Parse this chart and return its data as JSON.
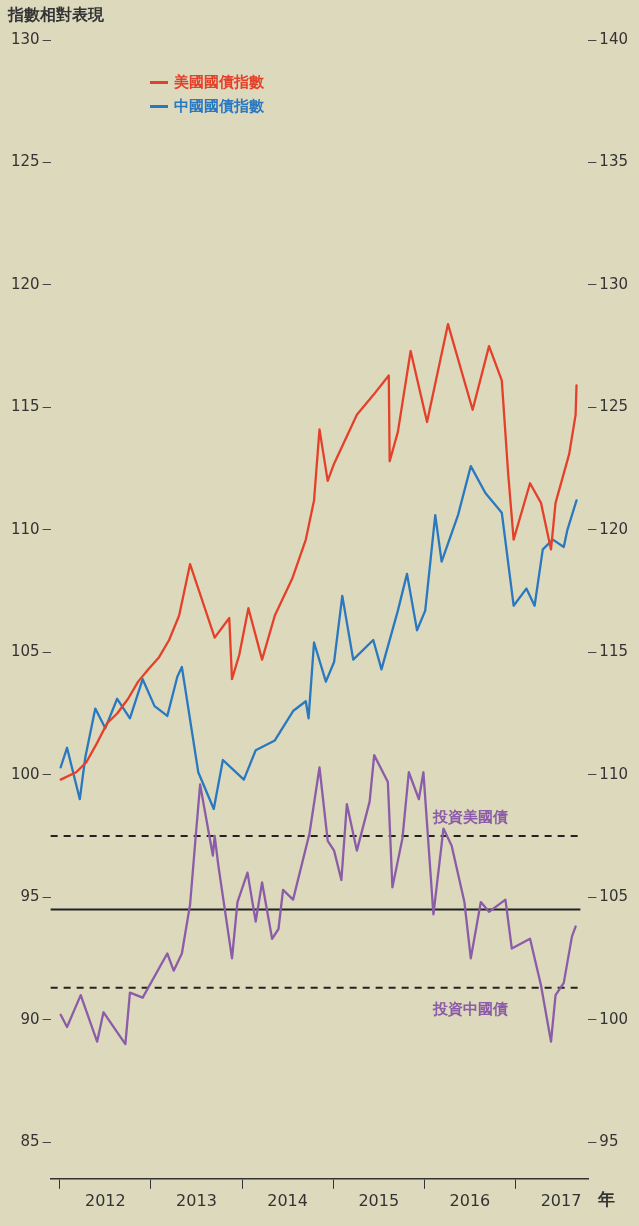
{
  "chart_data": {
    "type": "line",
    "ylabel": "指數相對表現",
    "xlabel": "年",
    "xlim": [
      2011.9,
      2017.8
    ],
    "xticks": [
      {
        "value": 2012,
        "label": null
      },
      {
        "value": 2012.5,
        "label": "2012"
      },
      {
        "value": 2013,
        "label": null
      },
      {
        "value": 2013.5,
        "label": "2013"
      },
      {
        "value": 2014,
        "label": null
      },
      {
        "value": 2014.5,
        "label": "2014"
      },
      {
        "value": 2015,
        "label": null
      },
      {
        "value": 2015.5,
        "label": "2015"
      },
      {
        "value": 2016,
        "label": null
      },
      {
        "value": 2016.5,
        "label": "2016"
      },
      {
        "value": 2017,
        "label": null
      },
      {
        "value": 2017.5,
        "label": "2017"
      }
    ],
    "ylim": [
      83.5,
      130
    ],
    "yticks": [
      85,
      90,
      95,
      100,
      105,
      110,
      115,
      120,
      125,
      130
    ],
    "y2lim": [
      93.5,
      140
    ],
    "y2ticks": [
      95,
      100,
      105,
      110,
      115,
      120,
      125,
      130,
      135,
      140
    ],
    "grid": false,
    "legend": "top left",
    "marker": "none",
    "line_style": "solid",
    "series": [
      {
        "name": "美國國債指數",
        "color": "#e5402a",
        "x": [
          2012.01,
          2012.18,
          2012.29,
          2012.41,
          2012.52,
          2012.63,
          2012.75,
          2012.86,
          2012.97,
          2013.09,
          2013.2,
          2013.31,
          2013.43,
          2013.7,
          2013.86,
          2013.89,
          2013.97,
          2014.07,
          2014.22,
          2014.36,
          2014.55,
          2014.7,
          2014.79,
          2014.85,
          2014.94,
          2015.01,
          2015.26,
          2015.44,
          2015.61,
          2015.62,
          2015.71,
          2015.85,
          2016.03,
          2016.26,
          2016.53,
          2016.71,
          2016.85,
          2016.92,
          2016.98,
          2017.16,
          2017.28,
          2017.39,
          2017.44,
          2017.59,
          2017.66,
          2017.67
        ],
        "values": [
          99.8,
          100.1,
          100.5,
          101.3,
          102.1,
          102.5,
          103.1,
          103.8,
          104.3,
          104.8,
          105.5,
          106.5,
          108.6,
          105.6,
          106.4,
          103.9,
          104.9,
          106.8,
          104.7,
          106.5,
          108,
          109.6,
          111.2,
          114.1,
          112,
          112.7,
          114.7,
          115.5,
          116.3,
          112.8,
          114,
          117.3,
          114.4,
          118.4,
          114.9,
          117.5,
          116.1,
          112.3,
          109.6,
          111.9,
          111.1,
          109.2,
          111.1,
          113.1,
          114.7,
          115.9
        ]
      },
      {
        "name": "中國國債指數",
        "color": "#2a78c0",
        "x": [
          2012.01,
          2012.08,
          2012.22,
          2012.28,
          2012.39,
          2012.5,
          2012.63,
          2012.77,
          2012.91,
          2013.04,
          2013.18,
          2013.29,
          2013.34,
          2013.52,
          2013.69,
          2013.79,
          2014.02,
          2014.15,
          2014.36,
          2014.56,
          2014.7,
          2014.73,
          2014.79,
          2014.92,
          2015.01,
          2015.1,
          2015.22,
          2015.44,
          2015.53,
          2015.71,
          2015.81,
          2015.92,
          2016.01,
          2016.12,
          2016.19,
          2016.37,
          2016.51,
          2016.67,
          2016.85,
          2016.98,
          2017.12,
          2017.21,
          2017.3,
          2017.41,
          2017.53,
          2017.57,
          2017.67
        ],
        "values": [
          100.3,
          101.1,
          99,
          100.7,
          102.7,
          101.9,
          103.1,
          102.3,
          103.9,
          102.8,
          102.4,
          104,
          104.4,
          100.1,
          98.6,
          100.6,
          99.8,
          101,
          101.4,
          102.6,
          103,
          102.3,
          105.4,
          103.8,
          104.6,
          107.3,
          104.7,
          105.5,
          104.3,
          106.7,
          108.2,
          105.9,
          106.7,
          110.6,
          108.7,
          110.6,
          112.6,
          111.5,
          110.7,
          106.9,
          107.6,
          106.9,
          109.2,
          109.6,
          109.3,
          110,
          111.2
        ]
      },
      {
        "color": "#8b5ca8",
        "axis": "y2",
        "x": [
          2012.01,
          2012.08,
          2012.23,
          2012.41,
          2012.48,
          2012.72,
          2012.77,
          2012.91,
          2013.18,
          2013.25,
          2013.34,
          2013.43,
          2013.49,
          2013.54,
          2013.68,
          2013.7,
          2013.74,
          2013.89,
          2013.95,
          2014.06,
          2014.15,
          2014.22,
          2014.33,
          2014.4,
          2014.45,
          2014.56,
          2014.74,
          2014.85,
          2014.94,
          2015.01,
          2015.09,
          2015.15,
          2015.26,
          2015.4,
          2015.45,
          2015.6,
          2015.65,
          2015.76,
          2015.83,
          2015.94,
          2015.99,
          2016.1,
          2016.21,
          2016.3,
          2016.44,
          2016.51,
          2016.62,
          2016.71,
          2016.89,
          2016.96,
          2017.16,
          2017.28,
          2017.39,
          2017.44,
          2017.53,
          2017.62,
          2017.66
        ],
        "values": [
          100.2,
          99.7,
          101,
          99.1,
          100.3,
          99,
          101.1,
          100.9,
          102.7,
          102,
          102.7,
          104.7,
          107.4,
          109.6,
          106.7,
          107.5,
          106.3,
          102.5,
          104.8,
          106,
          104,
          105.6,
          103.3,
          103.7,
          105.3,
          104.9,
          107.6,
          110.3,
          107.3,
          106.9,
          105.7,
          108.8,
          106.9,
          108.9,
          110.8,
          109.7,
          105.4,
          107.4,
          110.1,
          109,
          110.1,
          104.3,
          107.8,
          107.1,
          104.8,
          102.5,
          104.8,
          104.4,
          104.9,
          102.9,
          103.3,
          101.4,
          99.1,
          101,
          101.5,
          103.4,
          103.8
        ]
      }
    ],
    "ref_lines": [
      {
        "axis": "y2",
        "value": 107.5,
        "line_style": "dashed",
        "color": "#222222"
      },
      {
        "axis": "y2",
        "value": 104.5,
        "line_style": "solid",
        "color": "#222222"
      },
      {
        "axis": "y2",
        "value": 101.3,
        "line_style": "dashed",
        "color": "#222222"
      }
    ],
    "annotations": [
      "投資美國債",
      "投資中國債"
    ]
  }
}
